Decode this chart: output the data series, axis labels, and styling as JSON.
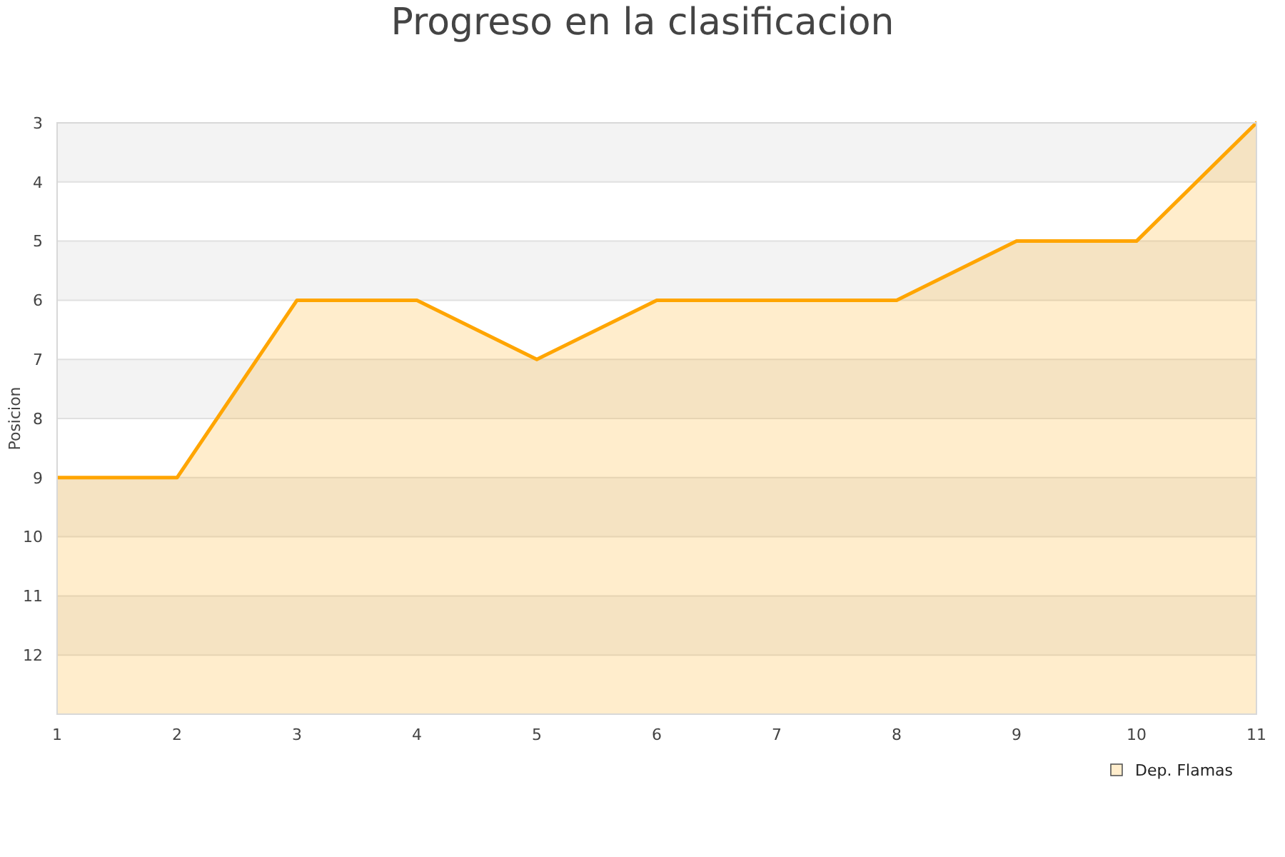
{
  "chart_data": {
    "type": "area",
    "title": "Progreso en la clasificacion",
    "ylabel": "Posicion",
    "x": [
      1,
      2,
      3,
      4,
      5,
      6,
      7,
      8,
      9,
      10,
      11
    ],
    "series": [
      {
        "name": "Dep. Flamas",
        "color": "#ffa500",
        "values": [
          9,
          9,
          6,
          6,
          7,
          6,
          6,
          6,
          5,
          5,
          3
        ]
      }
    ],
    "xlim": [
      1,
      11
    ],
    "xticks": [
      1,
      2,
      3,
      4,
      5,
      6,
      7,
      8,
      9,
      10,
      11
    ],
    "ylim": [
      13,
      3
    ],
    "yticks": [
      3,
      4,
      5,
      6,
      7,
      8,
      9,
      10,
      11,
      12
    ],
    "bands": [
      {
        "axis": "y",
        "from": 3,
        "to": 4,
        "color": "#f3f3f3"
      },
      {
        "axis": "y",
        "from": 5,
        "to": 6,
        "color": "#f3f3f3"
      },
      {
        "axis": "y",
        "from": 7,
        "to": 8,
        "color": "#f3f3f3"
      },
      {
        "axis": "y",
        "from": 9,
        "to": 10,
        "color": "#f3f3f3"
      },
      {
        "axis": "y",
        "from": 11,
        "to": 12,
        "color": "#f3f3f3"
      }
    ],
    "grid": "y",
    "legend": "bottom right",
    "marker": "none",
    "line_style": "solid"
  }
}
